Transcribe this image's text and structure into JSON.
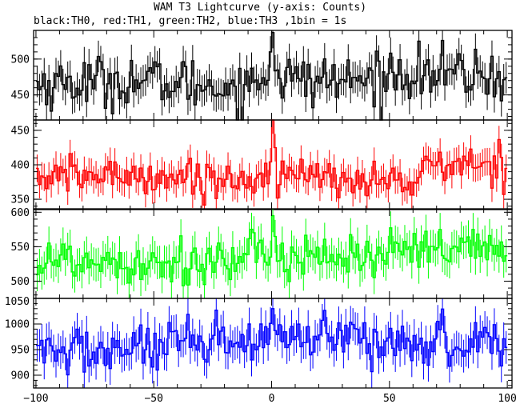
{
  "title": "WAM T3 Lightcurve (y-axis: Counts)",
  "subtitle": "black:TH0, red:TH1, green:TH2, blue:TH3 ,1bin = 1s",
  "chart_data": {
    "type": "line",
    "style": "step-with-error-bars",
    "xlim": [
      -101,
      102
    ],
    "x_ticks": [
      -100,
      -50,
      0,
      50,
      100
    ],
    "x_tick_labels": [
      "−100",
      "−50",
      "0",
      "50",
      "100"
    ],
    "bin_width": 1,
    "grid": false,
    "panels": [
      {
        "series_name": "TH0",
        "color": "#000000",
        "ylim": [
          415,
          540
        ],
        "y_ticks": [
          450,
          500
        ],
        "baseline": [
          [
            -100,
            465
          ],
          [
            -60,
            470
          ],
          [
            -10,
            460
          ],
          [
            -2,
            478
          ],
          [
            0,
            482
          ],
          [
            10,
            470
          ],
          [
            40,
            470
          ],
          [
            55,
            482
          ],
          [
            80,
            478
          ],
          [
            100,
            475
          ]
        ],
        "noise": 18,
        "error": 22,
        "features": [
          [
            0,
            55,
            1.0
          ],
          [
            -1,
            30,
            1.0
          ],
          [
            -9,
            25,
            1.0
          ]
        ]
      },
      {
        "series_name": "TH1",
        "color": "#ff0000",
        "ylim": [
          335,
          465
        ],
        "y_ticks": [
          350,
          400,
          450
        ],
        "baseline": [
          [
            -100,
            382
          ],
          [
            -60,
            385
          ],
          [
            -10,
            378
          ],
          [
            0,
            385
          ],
          [
            40,
            378
          ],
          [
            60,
            375
          ],
          [
            67,
            400
          ],
          [
            100,
            400
          ]
        ],
        "noise": 13,
        "error": 20,
        "features": [
          [
            0,
            80,
            1.0
          ],
          [
            1,
            40,
            1.0
          ],
          [
            -1,
            20,
            1.0
          ]
        ]
      },
      {
        "series_name": "TH2",
        "color": "#00ff00",
        "ylim": [
          475,
          605
        ],
        "y_ticks": [
          500,
          550,
          600
        ],
        "baseline": [
          [
            -100,
            530
          ],
          [
            -60,
            530
          ],
          [
            -10,
            528
          ],
          [
            0,
            540
          ],
          [
            40,
            535
          ],
          [
            80,
            545
          ],
          [
            100,
            540
          ]
        ],
        "noise": 18,
        "error": 24,
        "features": [
          [
            0,
            55,
            1.0
          ],
          [
            1,
            25,
            1.0
          ]
        ]
      },
      {
        "series_name": "TH3",
        "color": "#0000ff",
        "ylim": [
          875,
          1050
        ],
        "y_ticks": [
          900,
          950,
          1000,
          1050
        ],
        "baseline": [
          [
            -100,
            945
          ],
          [
            -60,
            950
          ],
          [
            -10,
            960
          ],
          [
            0,
            970
          ],
          [
            40,
            965
          ],
          [
            100,
            965
          ]
        ],
        "noise": 25,
        "error": 32,
        "features": [
          [
            0,
            60,
            1.0
          ],
          [
            -10,
            40,
            1.0
          ],
          [
            -5,
            35,
            1.0
          ]
        ]
      }
    ]
  }
}
